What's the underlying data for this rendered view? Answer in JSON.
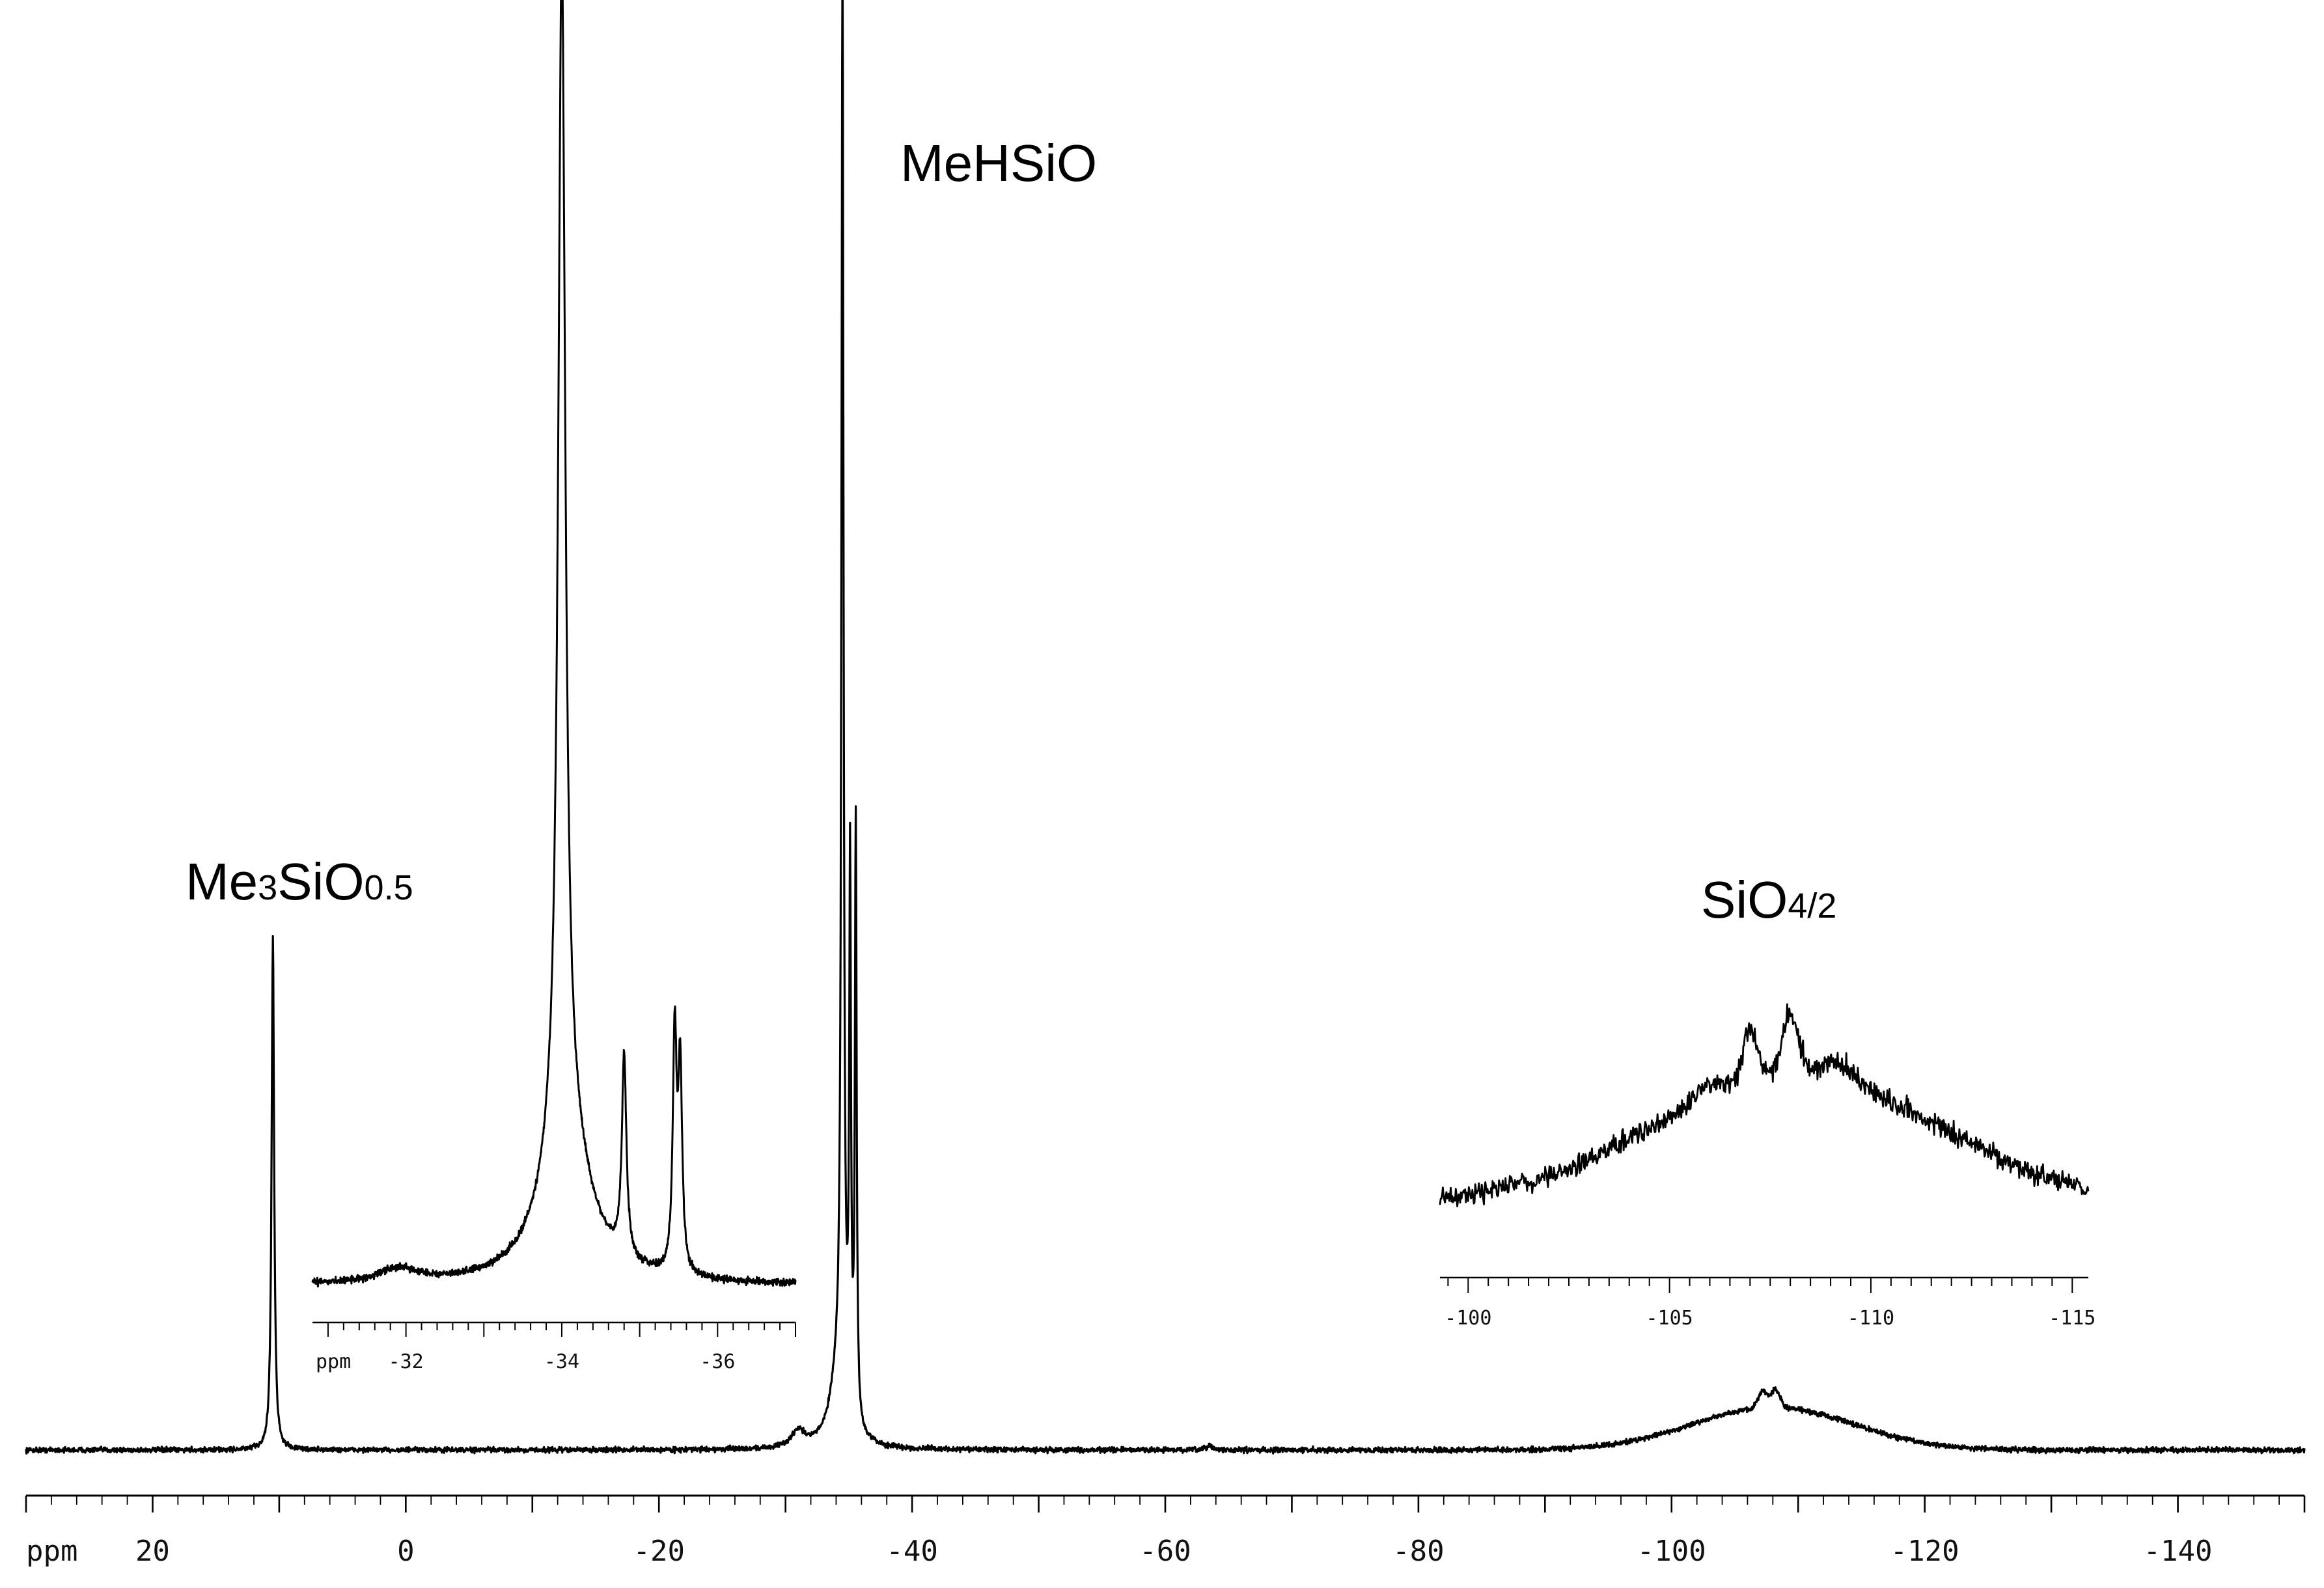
{
  "chart_data": {
    "type": "line",
    "title": "",
    "xlabel": "ppm",
    "ylabel": "",
    "x_reversed": true,
    "xlim": [
      30,
      -150
    ],
    "x_ticks": [
      20,
      0,
      -20,
      -40,
      -60,
      -80,
      -100,
      -120,
      -140
    ],
    "x_tick_labels": [
      "20",
      "0",
      "-20",
      "-40",
      "-60",
      "-80",
      "-100",
      "-120",
      "-140"
    ],
    "grid": false,
    "peaks": [
      {
        "label_main": "Me",
        "label_sub1": "3",
        "label_mid": "SiO",
        "label_sub2": "0.5",
        "x": 10.5,
        "height": 0.36
      },
      {
        "label_main": "MeHSiO",
        "label_sub1": "",
        "label_mid": "",
        "label_sub2": "",
        "x": -34.5,
        "height": 1.0
      },
      {
        "label_main": "SiO",
        "label_sub1": "4/2",
        "label_mid": "",
        "label_sub2": "",
        "x": -108,
        "height": 0.03
      }
    ],
    "insets": [
      {
        "name": "MeHSiO expansion",
        "xlabel": "ppm",
        "xlim": [
          -30.8,
          -37
        ],
        "x_ticks": [
          -32,
          -34,
          -36
        ],
        "x_tick_labels": [
          "-32",
          "-34",
          "-36"
        ],
        "components": [
          {
            "x": -34.0,
            "height": 1.0
          },
          {
            "x": -34.8,
            "height": 0.17
          },
          {
            "x": -35.45,
            "height": 0.2
          }
        ]
      },
      {
        "name": "SiO4/2 expansion",
        "xlabel": "",
        "xlim": [
          -99.3,
          -115.4
        ],
        "x_ticks": [
          -100,
          -105,
          -110,
          -115
        ],
        "x_tick_labels": [
          "-100",
          "-105",
          "-110",
          "-115"
        ],
        "components": [
          {
            "x": -107.0,
            "height": 0.65
          },
          {
            "x": -108.0,
            "height": 0.72
          },
          {
            "x": -109.2,
            "height": 0.55
          }
        ]
      }
    ]
  }
}
